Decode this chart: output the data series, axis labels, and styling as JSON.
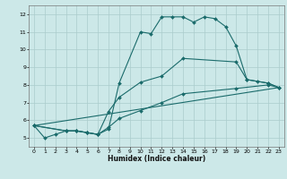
{
  "title": "",
  "xlabel": "Humidex (Indice chaleur)",
  "bg_color": "#cce8e8",
  "grid_color": "#aacccc",
  "line_color": "#1a6b6b",
  "xlim": [
    -0.5,
    23.5
  ],
  "ylim": [
    4.5,
    12.5
  ],
  "xticks": [
    0,
    1,
    2,
    3,
    4,
    5,
    6,
    7,
    8,
    9,
    10,
    11,
    12,
    13,
    14,
    15,
    16,
    17,
    18,
    19,
    20,
    21,
    22,
    23
  ],
  "yticks": [
    5,
    6,
    7,
    8,
    9,
    10,
    11,
    12
  ],
  "lines": [
    {
      "x": [
        0,
        1,
        2,
        3,
        4,
        5,
        6,
        7,
        8,
        10,
        11,
        12,
        13,
        14,
        15,
        16,
        17,
        18,
        19,
        20,
        21,
        22,
        23
      ],
      "y": [
        5.7,
        5.0,
        5.2,
        5.4,
        5.4,
        5.3,
        5.2,
        5.5,
        8.1,
        11.0,
        10.9,
        11.85,
        11.85,
        11.85,
        11.55,
        11.85,
        11.75,
        11.3,
        10.2,
        8.3,
        8.2,
        8.1,
        7.85
      ],
      "marker": true
    },
    {
      "x": [
        0,
        3,
        4,
        5,
        6,
        7,
        8,
        10,
        12,
        14,
        19,
        20,
        22,
        23
      ],
      "y": [
        5.7,
        5.4,
        5.4,
        5.3,
        5.2,
        6.5,
        7.3,
        8.15,
        8.5,
        9.5,
        9.3,
        8.3,
        8.1,
        7.85
      ],
      "marker": true
    },
    {
      "x": [
        0,
        3,
        4,
        5,
        6,
        7,
        8,
        10,
        12,
        14,
        19,
        22,
        23
      ],
      "y": [
        5.7,
        5.4,
        5.4,
        5.3,
        5.2,
        5.6,
        6.1,
        6.55,
        7.0,
        7.5,
        7.8,
        8.0,
        7.85
      ],
      "marker": true
    },
    {
      "x": [
        0,
        23
      ],
      "y": [
        5.7,
        7.85
      ],
      "marker": false
    }
  ]
}
